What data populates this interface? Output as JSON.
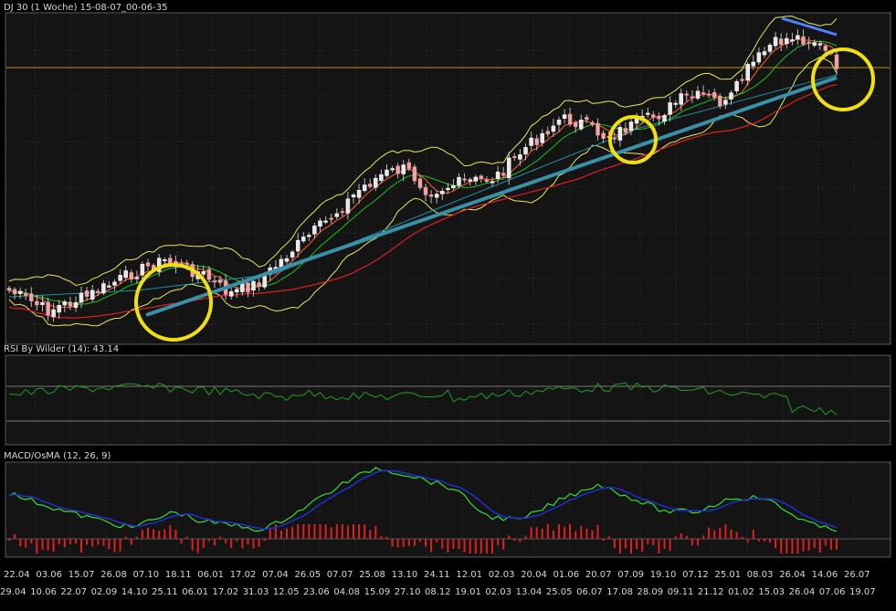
{
  "price_panel": {
    "title": "DJ 30 (1 Woche) 15-08-07_00-06-35"
  },
  "rsi_panel": {
    "title": "RSI By Wilder (14): 43.14"
  },
  "macd_panel": {
    "title": "MACD/OsMA (12, 26, 9)"
  },
  "colors": {
    "background": "#000000",
    "panel_bg": "#141414",
    "grid": "#3a3a3a",
    "text": "#d8d8d8",
    "candle_up": "#e8e8e8",
    "candle_down": "#e8a8a8",
    "bollinger": "#e8e860",
    "sma_fast": "#ff6030",
    "sma_mid": "#20c020",
    "sma_slow": "#e02020",
    "long_ma": "#2090a0",
    "trendline": "#3a90a8",
    "resistance": "#5080ff",
    "hline": "#b89020",
    "circles": "#f0e010",
    "rsi": "#20a020",
    "macd": "#30e030",
    "signal": "#2030d0",
    "osma": "#e02020"
  },
  "chart_data": {
    "type": "candlestick",
    "xaxis_top_labels": [
      "22.04",
      "03.06",
      "15.07",
      "26.08",
      "07.10",
      "18.11",
      "06.01",
      "17.02",
      "07.04",
      "26.05",
      "07.07",
      "25.08",
      "13.10",
      "24.11",
      "12.01",
      "02.03",
      "20.04",
      "01.06",
      "20.07",
      "07.09",
      "19.10",
      "07.12",
      "25.01",
      "08.03",
      "26.04",
      "14.06",
      "26.07"
    ],
    "xaxis_bottom_labels": [
      "29.04",
      "10.06",
      "22.07",
      "02.09",
      "14.10",
      "25.11",
      "06.01",
      "17.02",
      "31.03",
      "12.05",
      "23.06",
      "04.08",
      "15.09",
      "27.10",
      "08.12",
      "19.01",
      "02.03",
      "13.04",
      "25.05",
      "06.07",
      "17.08",
      "28.09",
      "09.11",
      "21.12",
      "01.02",
      "15.03",
      "26.04",
      "07.06",
      "19.07"
    ],
    "rsi": {
      "last_value": 43.14,
      "period": 14
    },
    "macd": {
      "fast": 12,
      "slow": 26,
      "signal": 9
    }
  }
}
